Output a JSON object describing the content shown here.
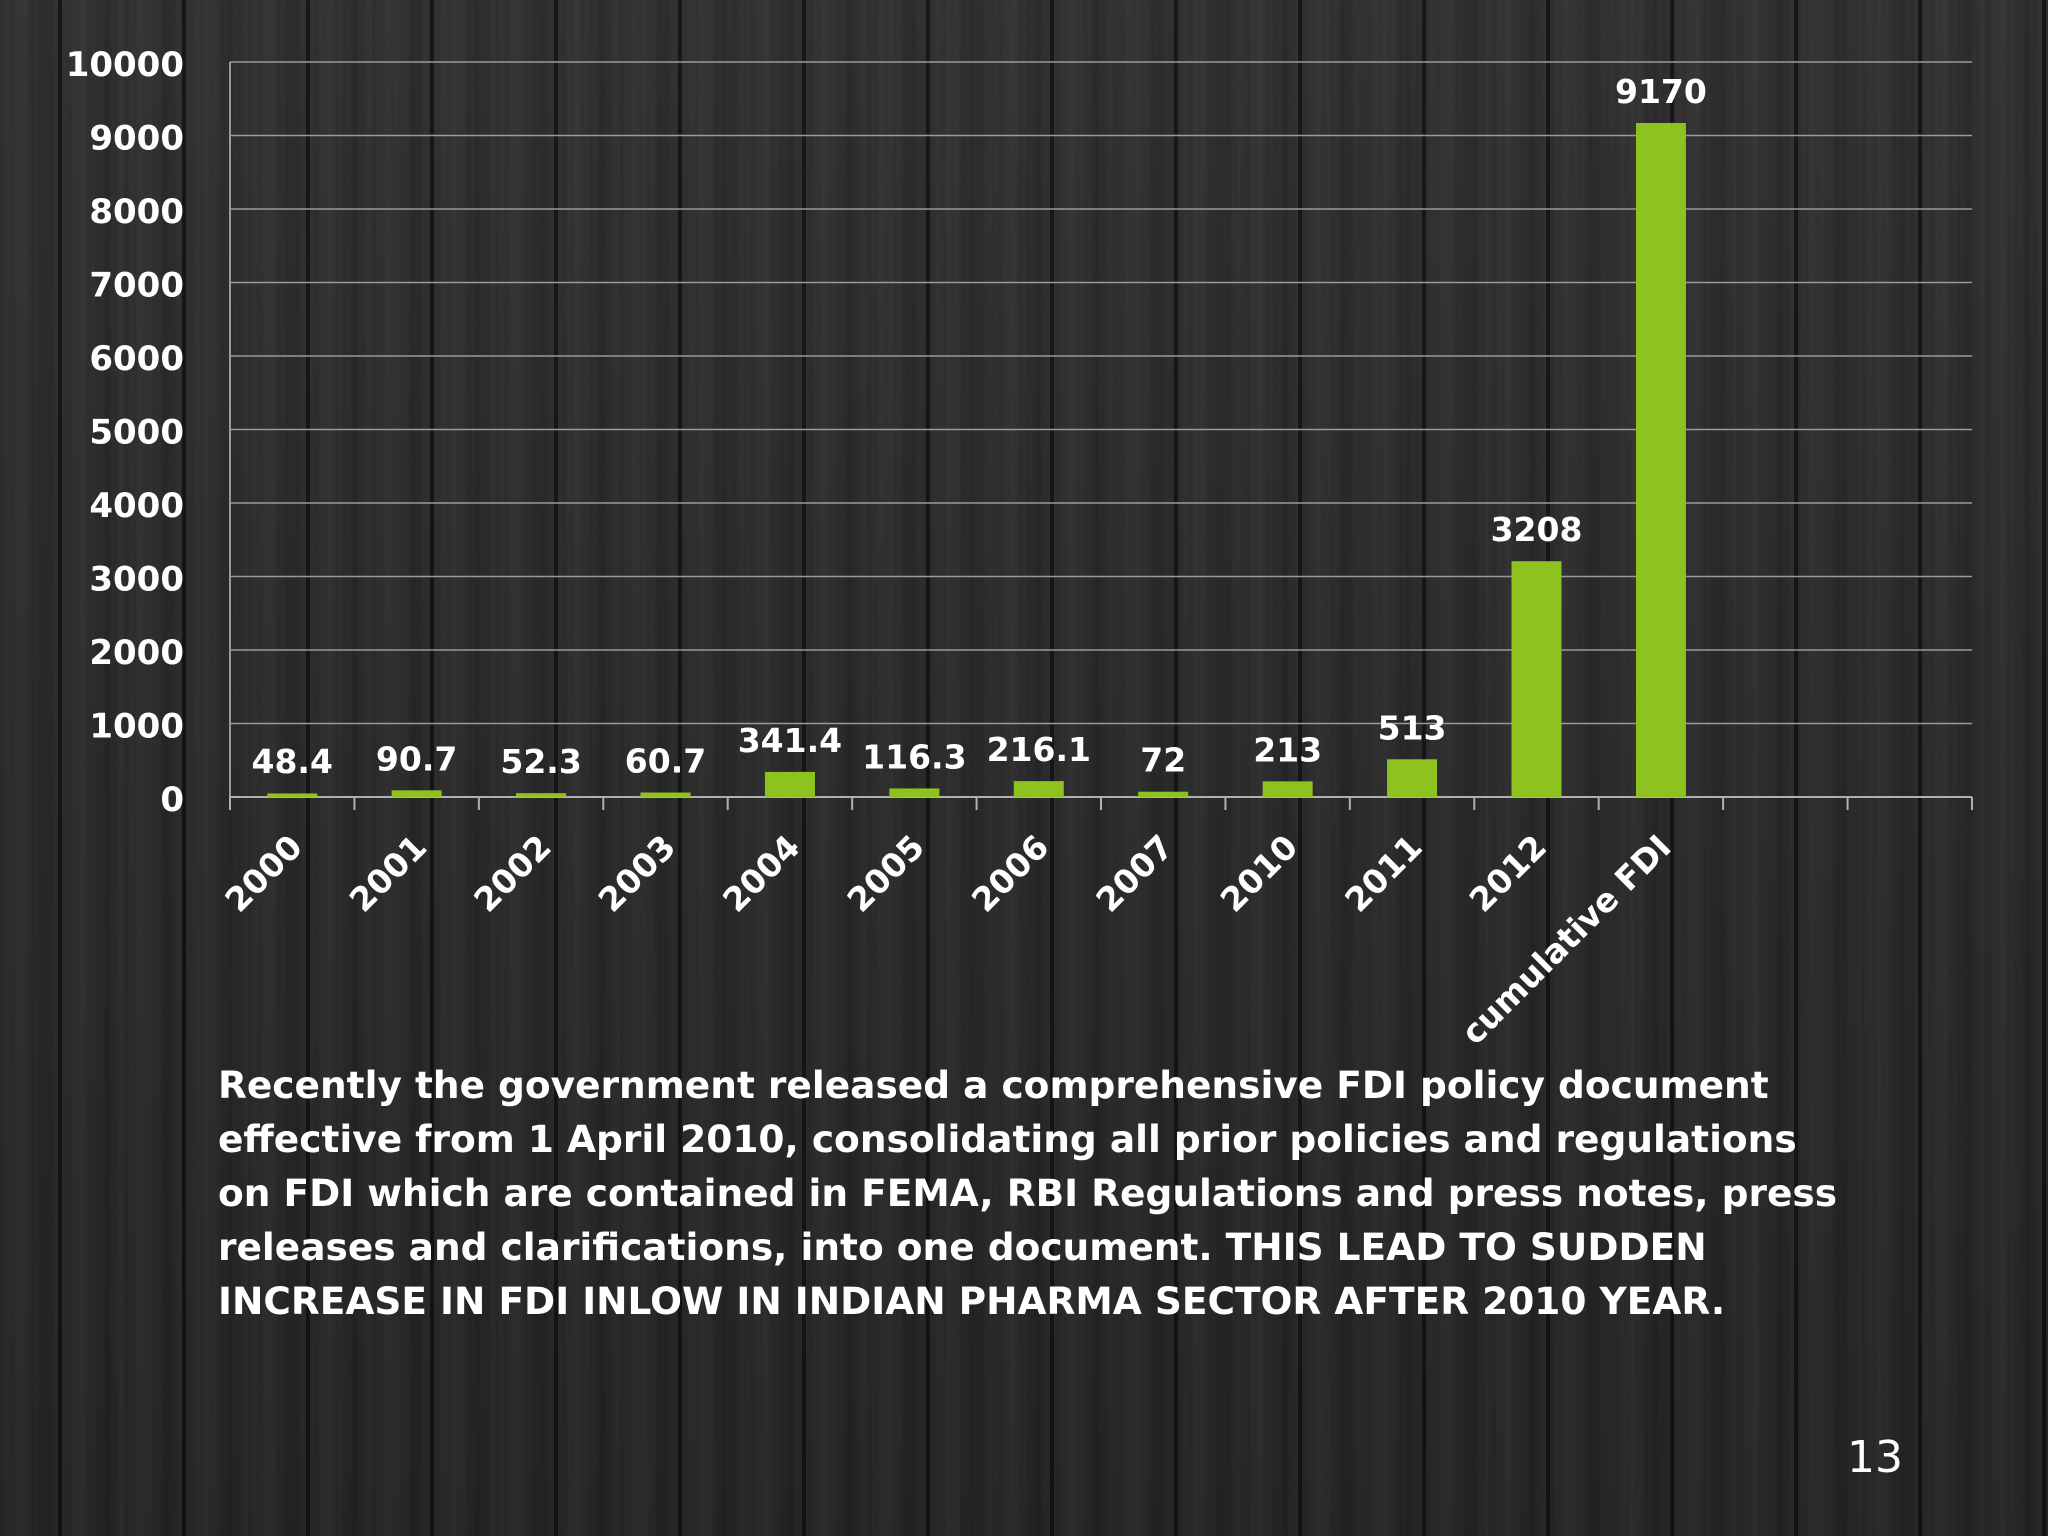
{
  "chart_data": {
    "type": "bar",
    "categories": [
      "2000",
      "2001",
      "2002",
      "2003",
      "2004",
      "2005",
      "2006",
      "2007",
      "2010",
      "2011",
      "2012",
      "cumulative FDI"
    ],
    "series": [
      {
        "values": [
          48.4,
          90.7,
          52.3,
          60.7,
          341.4,
          116.3,
          216.1,
          72,
          213,
          513,
          3208,
          9170
        ]
      }
    ],
    "value_labels": [
      "48.4",
      "90.7",
      "52.3",
      "60.7",
      "341.4",
      "116.3",
      "216.1",
      "72",
      "213",
      "513",
      "3208",
      "9170"
    ],
    "y_ticks": [
      "0",
      "1000",
      "2000",
      "3000",
      "4000",
      "5000",
      "6000",
      "7000",
      "8000",
      "9000",
      "10000"
    ],
    "ylim": [
      0,
      10000
    ],
    "bar_color": "#8dc21f",
    "grid": true
  },
  "caption": " Recently the government released a comprehensive FDI policy document effective from 1 April 2010, consolidating all prior policies and regulations on FDI which are contained in FEMA,  RBI Regulations and press notes, press releases and clarifications, into one document. THIS LEAD TO SUDDEN INCREASE IN FDI INLOW IN INDIAN PHARMA SECTOR AFTER 2010 YEAR.",
  "slide_number": "13"
}
